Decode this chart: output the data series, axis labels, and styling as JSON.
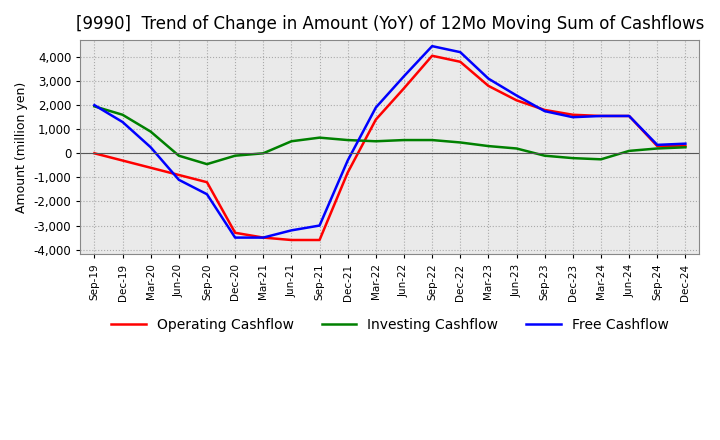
{
  "title": "[9990]  Trend of Change in Amount (YoY) of 12Mo Moving Sum of Cashflows",
  "ylabel": "Amount (million yen)",
  "ylim": [
    -4200,
    4700
  ],
  "yticks": [
    -4000,
    -3000,
    -2000,
    -1000,
    0,
    1000,
    2000,
    3000,
    4000
  ],
  "x_labels": [
    "Sep-19",
    "Dec-19",
    "Mar-20",
    "Jun-20",
    "Sep-20",
    "Dec-20",
    "Mar-21",
    "Jun-21",
    "Sep-21",
    "Dec-21",
    "Mar-22",
    "Jun-22",
    "Sep-22",
    "Dec-22",
    "Mar-23",
    "Jun-23",
    "Sep-23",
    "Dec-23",
    "Mar-24",
    "Jun-24",
    "Sep-24",
    "Dec-24"
  ],
  "operating": [
    0,
    -300,
    -600,
    -900,
    -1200,
    -3300,
    -3500,
    -3600,
    -3600,
    -800,
    1400,
    2700,
    4050,
    3800,
    2800,
    2200,
    1800,
    1600,
    1550,
    1550,
    300,
    300
  ],
  "investing": [
    1950,
    1600,
    900,
    -100,
    -450,
    -100,
    0,
    500,
    650,
    550,
    500,
    550,
    550,
    450,
    300,
    200,
    -100,
    -200,
    -250,
    100,
    200,
    250
  ],
  "free": [
    2000,
    1300,
    250,
    -1100,
    -1700,
    -3500,
    -3500,
    -3200,
    -3000,
    -300,
    1900,
    3200,
    4450,
    4200,
    3100,
    2400,
    1750,
    1500,
    1550,
    1550,
    350,
    400
  ],
  "operating_color": "#ff0000",
  "investing_color": "#008000",
  "free_color": "#0000ff",
  "grid_color": "#aaaaaa",
  "plot_bg_color": "#eaeaea",
  "background_color": "#ffffff",
  "title_fontsize": 12,
  "axis_fontsize": 9,
  "legend_fontsize": 10
}
